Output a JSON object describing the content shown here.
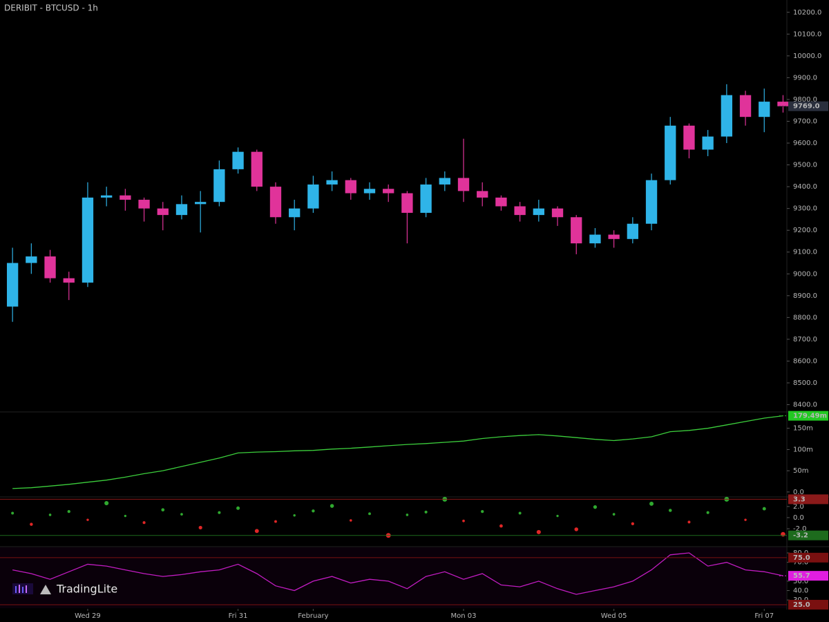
{
  "logo": "TradingLite",
  "chart_data": [
    {
      "type": "candlestick",
      "title": "DERIBIT - BTCUSD - 1h",
      "x": [
        0,
        6,
        12,
        18,
        24,
        30,
        36,
        42,
        48,
        54,
        60,
        66,
        72,
        78,
        84,
        90,
        96,
        102,
        108,
        114,
        120,
        126,
        132,
        138,
        144,
        150,
        156,
        162,
        168,
        174,
        180,
        186,
        192,
        198,
        204,
        210,
        216,
        222,
        228,
        234,
        240,
        246
      ],
      "open": [
        8850,
        9050,
        9080,
        8980,
        8960,
        9350,
        9360,
        9340,
        9300,
        9270,
        9320,
        9330,
        9480,
        9560,
        9400,
        9260,
        9300,
        9410,
        9430,
        9370,
        9390,
        9370,
        9280,
        9410,
        9440,
        9380,
        9350,
        9310,
        9270,
        9300,
        9260,
        9140,
        9180,
        9160,
        9230,
        9430,
        9680,
        9570,
        9630,
        9820,
        9720,
        9790
      ],
      "high": [
        9120,
        9140,
        9110,
        9010,
        9420,
        9400,
        9390,
        9350,
        9330,
        9360,
        9380,
        9520,
        9580,
        9570,
        9420,
        9340,
        9450,
        9470,
        9440,
        9420,
        9410,
        9380,
        9440,
        9470,
        9620,
        9420,
        9360,
        9330,
        9340,
        9310,
        9270,
        9210,
        9200,
        9260,
        9460,
        9720,
        9690,
        9660,
        9870,
        9840,
        9850,
        9820
      ],
      "low": [
        8780,
        9000,
        8960,
        8880,
        8940,
        9310,
        9290,
        9240,
        9200,
        9250,
        9190,
        9310,
        9460,
        9380,
        9230,
        9200,
        9280,
        9380,
        9340,
        9340,
        9330,
        9140,
        9260,
        9380,
        9330,
        9310,
        9290,
        9240,
        9240,
        9220,
        9090,
        9120,
        9120,
        9140,
        9200,
        9410,
        9530,
        9540,
        9600,
        9680,
        9650,
        9740
      ],
      "close": [
        9050,
        9080,
        8980,
        8960,
        9350,
        9360,
        9340,
        9300,
        9270,
        9320,
        9330,
        9480,
        9560,
        9400,
        9260,
        9300,
        9410,
        9430,
        9370,
        9390,
        9370,
        9280,
        9410,
        9440,
        9380,
        9350,
        9310,
        9270,
        9300,
        9260,
        9140,
        9180,
        9160,
        9230,
        9430,
        9680,
        9570,
        9630,
        9820,
        9720,
        9790,
        9769
      ],
      "up_color": "#2fb4e8",
      "down_color": "#e0339a",
      "xlim": [
        -4,
        247
      ],
      "ylim": [
        8370,
        10250
      ],
      "yticks": [
        {
          "value": 8400,
          "label": "8400.0"
        },
        {
          "value": 8500,
          "label": "8500.0"
        },
        {
          "value": 8600,
          "label": "8600.0"
        },
        {
          "value": 8700,
          "label": "8700.0"
        },
        {
          "value": 8800,
          "label": "8800.0"
        },
        {
          "value": 8900,
          "label": "8900.0"
        },
        {
          "value": 9000,
          "label": "9000.0"
        },
        {
          "value": 9100,
          "label": "9100.0"
        },
        {
          "value": 9200,
          "label": "9200.0"
        },
        {
          "value": 9300,
          "label": "9300.0"
        },
        {
          "value": 9400,
          "label": "9400.0"
        },
        {
          "value": 9500,
          "label": "9500.0"
        },
        {
          "value": 9600,
          "label": "9600.0"
        },
        {
          "value": 9700,
          "label": "9700.0"
        },
        {
          "value": 9800,
          "label": "9800.0"
        },
        {
          "value": 9900,
          "label": "9900.0"
        },
        {
          "value": 10000,
          "label": "10000.0"
        },
        {
          "value": 10100,
          "label": "10100.0"
        },
        {
          "value": 10200,
          "label": "10200.0"
        }
      ],
      "last": {
        "value": 9769,
        "label": "9769.0",
        "color": "#2a2f3d"
      }
    },
    {
      "type": "line",
      "x": [
        0,
        6,
        12,
        18,
        24,
        30,
        36,
        42,
        48,
        54,
        60,
        66,
        72,
        78,
        84,
        90,
        96,
        102,
        108,
        114,
        120,
        126,
        132,
        138,
        144,
        150,
        156,
        162,
        168,
        174,
        180,
        186,
        192,
        198,
        204,
        210,
        216,
        222,
        228,
        234,
        240,
        246
      ],
      "series": [
        {
          "color": "#3ccf3c",
          "values": [
            8,
            10,
            14,
            18,
            23,
            28,
            35,
            43,
            50,
            60,
            70,
            80,
            92,
            94,
            95,
            97,
            98,
            101,
            103,
            106,
            109,
            112,
            114,
            117,
            120,
            126,
            130,
            133,
            135,
            132,
            128,
            124,
            121,
            125,
            130,
            142,
            145,
            150,
            158,
            166,
            174,
            179.49
          ]
        }
      ],
      "xlim": [
        -4,
        247
      ],
      "ylim": [
        -10,
        187
      ],
      "yticks": [
        {
          "value": 0,
          "label": "0.0"
        },
        {
          "value": 50,
          "label": "50m"
        },
        {
          "value": 100,
          "label": "100m"
        },
        {
          "value": 150,
          "label": "150m"
        }
      ],
      "last": {
        "value": 179.49,
        "label": "179.49m",
        "color": "#22c922"
      }
    },
    {
      "type": "scatter",
      "x": [
        0,
        6,
        12,
        18,
        24,
        30,
        36,
        42,
        48,
        54,
        60,
        66,
        72,
        78,
        84,
        90,
        96,
        102,
        108,
        114,
        120,
        126,
        132,
        138,
        144,
        150,
        156,
        162,
        168,
        174,
        180,
        186,
        192,
        198,
        204,
        210,
        216,
        222,
        228,
        234,
        240,
        246
      ],
      "values": [
        0.8,
        -1.2,
        0.5,
        1.1,
        -0.4,
        2.6,
        0.3,
        -0.9,
        1.4,
        0.6,
        -1.8,
        0.9,
        1.7,
        -2.4,
        -0.7,
        0.4,
        1.2,
        2.1,
        -0.5,
        0.7,
        -3.2,
        0.5,
        1.0,
        3.3,
        -0.6,
        1.1,
        -1.5,
        0.8,
        -2.6,
        0.3,
        -2.1,
        1.9,
        0.6,
        -1.1,
        2.5,
        1.3,
        -0.8,
        0.9,
        3.3,
        -0.4,
        1.6,
        -3.0
      ],
      "positive_color": "#2fa82f",
      "negative_color": "#e02626",
      "xlim": [
        -4,
        247
      ],
      "ylim": [
        -5.1,
        3.6
      ],
      "yticks": [
        {
          "value": 2,
          "label": "2.0"
        },
        {
          "value": 0,
          "label": "0.0"
        },
        {
          "value": -2,
          "label": "-2.0"
        }
      ],
      "bands": [
        {
          "value": 3.3,
          "label": "3.3",
          "color": "#8b1a1a"
        },
        {
          "value": -3.2,
          "label": "-3.2",
          "color": "#1d6b1d"
        }
      ]
    },
    {
      "type": "line",
      "x": [
        0,
        6,
        12,
        18,
        24,
        30,
        36,
        42,
        48,
        54,
        60,
        66,
        72,
        78,
        84,
        90,
        96,
        102,
        108,
        114,
        120,
        126,
        132,
        138,
        144,
        150,
        156,
        162,
        168,
        174,
        180,
        186,
        192,
        198,
        204,
        210,
        216,
        222,
        228,
        234,
        240,
        246
      ],
      "series": [
        {
          "color": "#c21cc2",
          "values": [
            62,
            58,
            52,
            60,
            68,
            66,
            62,
            58,
            55,
            57,
            60,
            62,
            68,
            58,
            45,
            40,
            50,
            55,
            48,
            52,
            50,
            42,
            55,
            60,
            52,
            58,
            46,
            44,
            50,
            42,
            36,
            40,
            44,
            50,
            62,
            78,
            80,
            66,
            70,
            62,
            60,
            55.7
          ]
        }
      ],
      "xlim": [
        -4,
        247
      ],
      "ylim": [
        21.3,
        85.9
      ],
      "xticks": [
        {
          "value": 24,
          "label": "Wed 29"
        },
        {
          "value": 72,
          "label": "Fri 31"
        },
        {
          "value": 96,
          "label": "February"
        },
        {
          "value": 144,
          "label": "Mon 03"
        },
        {
          "value": 192,
          "label": "Wed 05"
        },
        {
          "value": 240,
          "label": "Fri 07"
        }
      ],
      "yticks": [
        {
          "value": 80,
          "label": "80.0"
        },
        {
          "value": 70,
          "label": "70.0"
        },
        {
          "value": 50,
          "label": "50.0"
        },
        {
          "value": 40,
          "label": "40.0"
        },
        {
          "value": 30,
          "label": "30.0"
        }
      ],
      "bands": [
        {
          "value": 75,
          "label": "75.0",
          "color": "#7a1010"
        },
        {
          "value": 25,
          "label": "25.0",
          "color": "#7a1010"
        }
      ],
      "last": {
        "value": 55.7,
        "label": "55.7",
        "color": "#e01ee0"
      }
    }
  ]
}
